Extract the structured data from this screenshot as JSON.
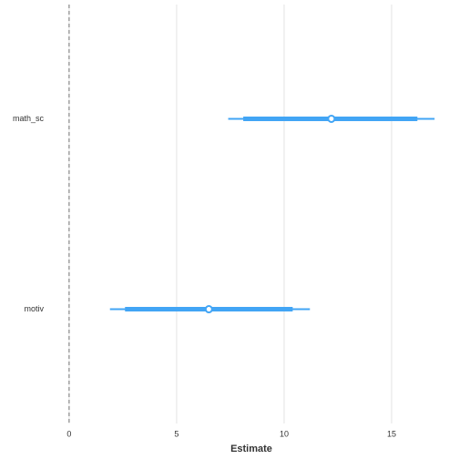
{
  "chart_data": {
    "type": "coefficient",
    "categories": [
      "math_sc",
      "motiv"
    ],
    "estimates": [
      12.2,
      6.5
    ],
    "inner_low": [
      8.1,
      2.6
    ],
    "inner_high": [
      16.2,
      10.4
    ],
    "outer_low": [
      7.4,
      1.9
    ],
    "outer_high": [
      17.0,
      11.2
    ],
    "color": "#42a5f5",
    "reference_line": 0,
    "xlim": [
      -0.8,
      17.5
    ],
    "xticks": [
      0,
      5,
      10,
      15
    ],
    "xlabel": "Estimate",
    "grid": true
  }
}
